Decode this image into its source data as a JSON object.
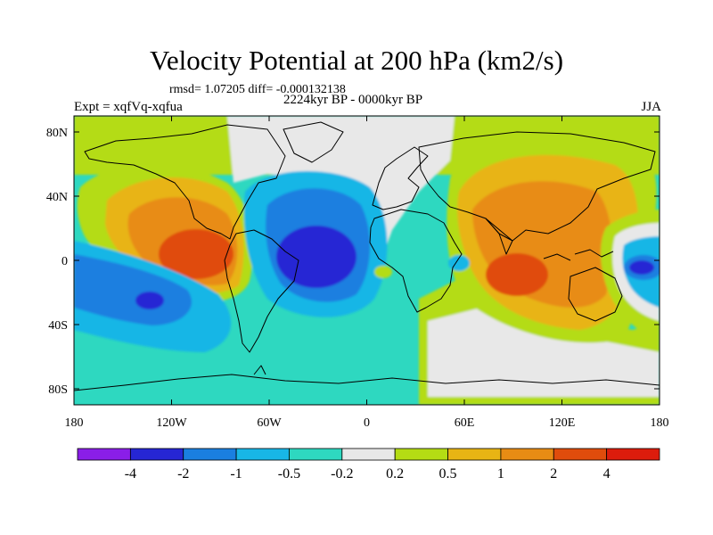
{
  "header": {
    "title": "Velocity Potential at 200 hPa (km2/s)",
    "stats": "rmsd= 1.07205 diff= -0.000132138",
    "experiment": "Expt = xqfVq-xqfua",
    "period": "2224kyr BP - 0000kyr BP",
    "season": "JJA"
  },
  "axes": {
    "lat_labels": [
      "80N",
      "40N",
      "0",
      "40S",
      "80S"
    ],
    "lon_labels": [
      "180",
      "120W",
      "60W",
      "0",
      "60E",
      "120E",
      "180"
    ]
  },
  "colorbar": {
    "labels": [
      "-4",
      "-2",
      "-1",
      "-0.5",
      "-0.2",
      "0.2",
      "0.5",
      "1",
      "2",
      "4"
    ],
    "colors": [
      "#8a1ee8",
      "#2626d4",
      "#1a7fe0",
      "#18b6e6",
      "#2ed8c0",
      "#e8e8e8",
      "#b4dc14",
      "#e8b414",
      "#e88c14",
      "#e04c0c",
      "#dc1c0c"
    ]
  },
  "chart_data": {
    "type": "filled-contour-map",
    "title": "Velocity Potential at 200 hPa (km2/s)",
    "variable": "velocity potential",
    "level": "200 hPa",
    "units": "km2/s",
    "season": "JJA",
    "lon_range": [
      -180,
      180
    ],
    "lat_range": [
      -90,
      90
    ],
    "contour_levels": [
      -4,
      -2,
      -1,
      -0.5,
      -0.2,
      0.2,
      0.5,
      1,
      2,
      4
    ],
    "features": [
      {
        "name": "positive maximum, eastern Pacific",
        "lon": -105,
        "lat": 5,
        "value_range": "2 to 4"
      },
      {
        "name": "positive maximum, Indian Ocean / Maritime Continent",
        "lon": 80,
        "lat": -5,
        "value_range": "2 to 4"
      },
      {
        "name": "negative minimum, tropical Atlantic",
        "lon": -30,
        "lat": 0,
        "value_range": "-4 to -2"
      },
      {
        "name": "negative minimum, western Pacific",
        "lon": 165,
        "lat": 0,
        "value_range": "-4 to -2"
      },
      {
        "name": "negative minimum, southeast Pacific",
        "lon": -150,
        "lat": -15,
        "value_range": "-2 to -1"
      }
    ]
  }
}
